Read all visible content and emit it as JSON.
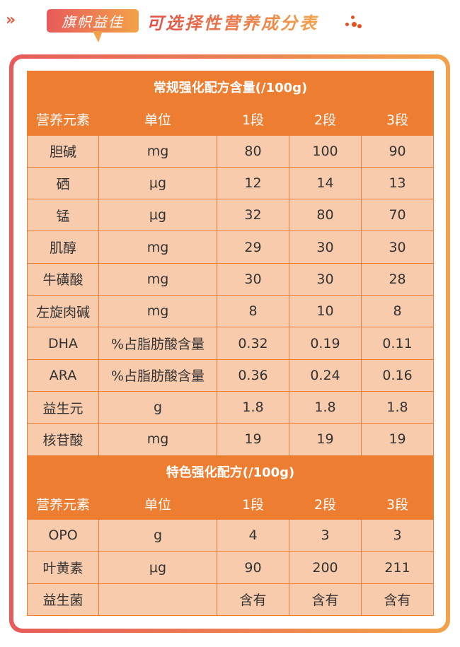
{
  "header": {
    "chevron": "»",
    "badge": "旗帜益佳",
    "title": "可选择性营养成分表"
  },
  "colors": {
    "accent": "#ed7d31",
    "cell": "#f8cbad"
  },
  "tables": [
    {
      "title": "常规强化配方含量(/100g)",
      "columns": [
        "营养元素",
        "单位",
        "1段",
        "2段",
        "3段"
      ],
      "rows": [
        [
          "胆碱",
          "mg",
          "80",
          "100",
          "90"
        ],
        [
          "硒",
          "μg",
          "12",
          "14",
          "13"
        ],
        [
          "锰",
          "μg",
          "32",
          "80",
          "70"
        ],
        [
          "肌醇",
          "mg",
          "29",
          "30",
          "30"
        ],
        [
          "牛磺酸",
          "mg",
          "30",
          "30",
          "28"
        ],
        [
          "左旋肉碱",
          "mg",
          "8",
          "10",
          "8"
        ],
        [
          "DHA",
          "%占脂肪酸含量",
          "0.32",
          "0.19",
          "0.11"
        ],
        [
          "ARA",
          "%占脂肪酸含量",
          "0.36",
          "0.24",
          "0.16"
        ],
        [
          "益生元",
          "g",
          "1.8",
          "1.8",
          "1.8"
        ],
        [
          "核苷酸",
          "mg",
          "19",
          "19",
          "19"
        ]
      ]
    },
    {
      "title": "特色强化配方(/100g)",
      "columns": [
        "营养元素",
        "单位",
        "1段",
        "2段",
        "3段"
      ],
      "rows": [
        [
          "OPO",
          "g",
          "4",
          "3",
          "3"
        ],
        [
          "叶黄素",
          "μg",
          "90",
          "200",
          "211"
        ],
        [
          "益生菌",
          "",
          "含有",
          "含有",
          "含有"
        ]
      ]
    }
  ]
}
